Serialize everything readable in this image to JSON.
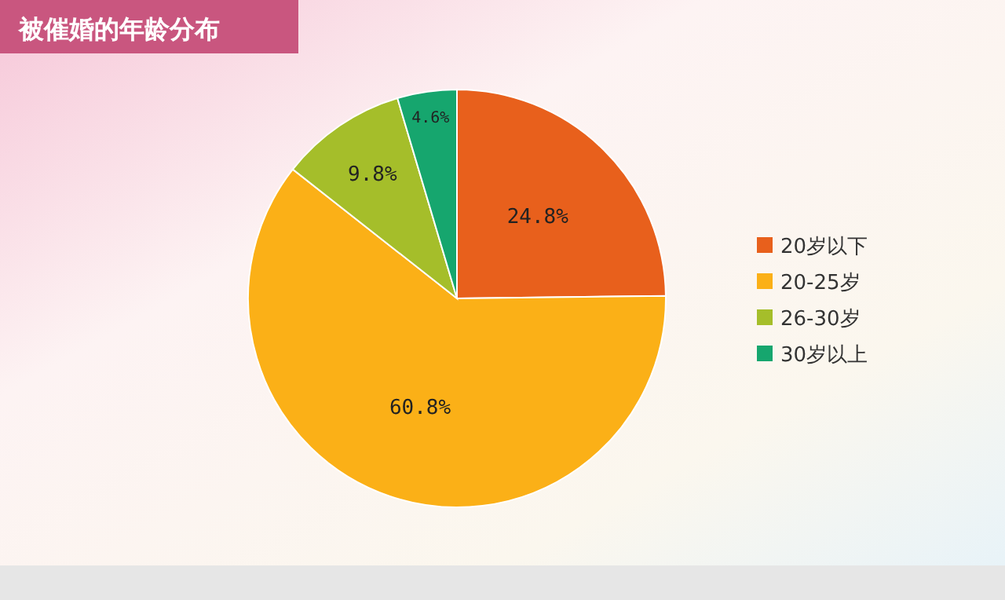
{
  "chart_data": {
    "type": "pie",
    "title": "被催婚的年龄分布",
    "categories": [
      "20岁以下",
      "20-25岁",
      "26-30岁",
      "30岁以上"
    ],
    "values": [
      24.8,
      60.8,
      9.8,
      4.6
    ],
    "colors": [
      "#e8601c",
      "#fbb017",
      "#a5be2a",
      "#16a66e"
    ],
    "value_labels": [
      "24.8%",
      "60.8%",
      "9.8%",
      "4.6%"
    ],
    "legend": "right"
  }
}
